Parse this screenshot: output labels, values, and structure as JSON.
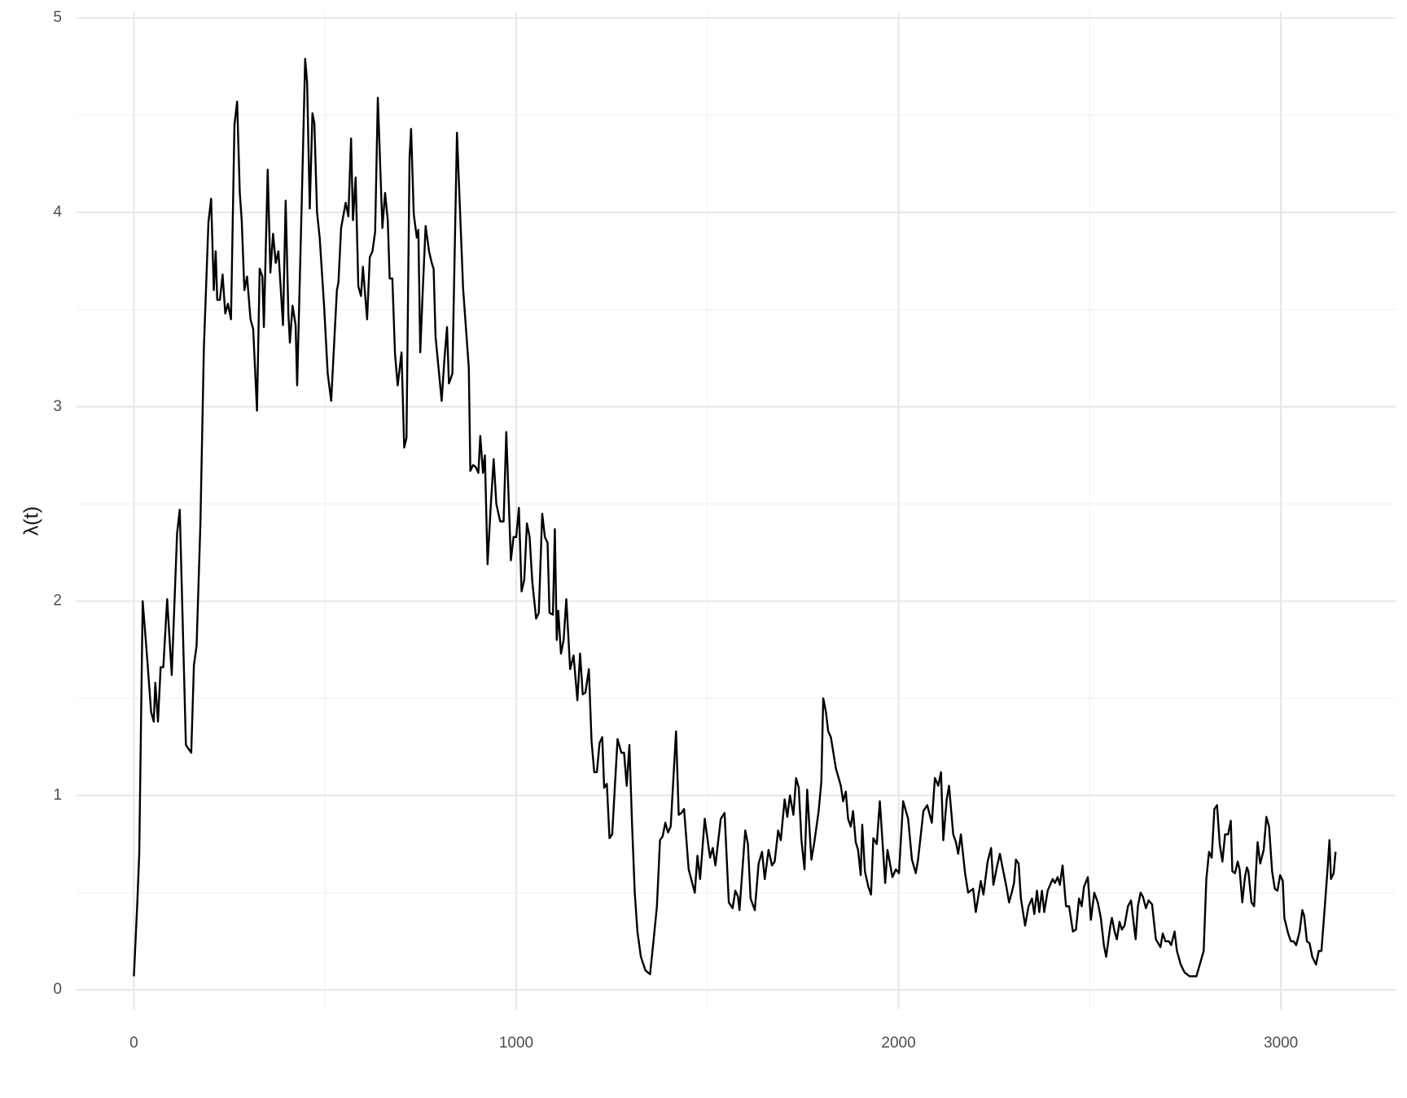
{
  "chart_data": {
    "type": "line",
    "y_label": "λ(t)",
    "color": "#000000",
    "grid": true,
    "xlim": [
      -150,
      3300
    ],
    "ylim": [
      -0.1,
      5.03
    ],
    "xticks": [
      0,
      1000,
      2000,
      3000
    ],
    "yticks": [
      0,
      1,
      2,
      3,
      4,
      5
    ],
    "x_minor_grid": [
      500,
      1500,
      2500
    ],
    "y_minor_grid": [
      0.5,
      1.5,
      2.5,
      3.5,
      4.5
    ],
    "x": [
      0,
      9,
      14,
      23,
      35,
      45,
      52,
      56,
      63,
      70,
      77,
      87,
      99,
      113,
      120,
      136,
      150,
      157,
      164,
      174,
      183,
      195,
      202,
      209,
      214,
      218,
      225,
      232,
      239,
      246,
      254,
      263,
      270,
      277,
      282,
      289,
      296,
      305,
      312,
      322,
      329,
      336,
      340,
      350,
      357,
      364,
      371,
      378,
      390,
      397,
      404,
      408,
      415,
      423,
      427,
      439,
      448,
      453,
      460,
      467,
      472,
      479,
      486,
      498,
      507,
      516,
      531,
      535,
      542,
      554,
      561,
      568,
      573,
      580,
      587,
      594,
      599,
      610,
      617,
      624,
      631,
      638,
      650,
      657,
      664,
      669,
      676,
      683,
      690,
      700,
      707,
      713,
      721,
      725,
      732,
      740,
      744,
      749,
      756,
      763,
      772,
      779,
      784,
      789,
      805,
      812,
      819,
      824,
      833,
      845,
      861,
      869,
      876,
      880,
      887,
      894,
      901,
      906,
      913,
      918,
      925,
      934,
      941,
      948,
      958,
      967,
      974,
      986,
      993,
      1000,
      1007,
      1014,
      1021,
      1028,
      1035,
      1042,
      1052,
      1059,
      1068,
      1075,
      1082,
      1087,
      1096,
      1101,
      1106,
      1110,
      1117,
      1124,
      1131,
      1141,
      1150,
      1160,
      1167,
      1174,
      1181,
      1190,
      1197,
      1204,
      1211,
      1218,
      1225,
      1230,
      1237,
      1244,
      1251,
      1265,
      1275,
      1282,
      1289,
      1296,
      1303,
      1310,
      1317,
      1326,
      1338,
      1350,
      1359,
      1368,
      1376,
      1383,
      1390,
      1397,
      1404,
      1418,
      1425,
      1432,
      1439,
      1451,
      1467,
      1474,
      1481,
      1493,
      1507,
      1514,
      1521,
      1535,
      1545,
      1556,
      1566,
      1573,
      1580,
      1584,
      1599,
      1606,
      1613,
      1624,
      1634,
      1643,
      1650,
      1660,
      1669,
      1676,
      1685,
      1692,
      1702,
      1709,
      1716,
      1725,
      1732,
      1739,
      1746,
      1754,
      1761,
      1772,
      1779,
      1791,
      1798,
      1803,
      1810,
      1816,
      1823,
      1836,
      1849,
      1855,
      1862,
      1868,
      1875,
      1881,
      1888,
      1894,
      1901,
      1905,
      1912,
      1921,
      1928,
      1934,
      1943,
      1951,
      1965,
      1971,
      1984,
      1993,
      2001,
      2012,
      2025,
      2035,
      2045,
      2051,
      2065,
      2075,
      2087,
      2095,
      2104,
      2111,
      2117,
      2126,
      2132,
      2143,
      2150,
      2156,
      2163,
      2174,
      2182,
      2195,
      2202,
      2215,
      2222,
      2233,
      2242,
      2248,
      2257,
      2265,
      2276,
      2283,
      2289,
      2296,
      2302,
      2307,
      2314,
      2320,
      2331,
      2340,
      2349,
      2355,
      2362,
      2368,
      2375,
      2381,
      2390,
      2403,
      2409,
      2416,
      2422,
      2429,
      2438,
      2446,
      2456,
      2464,
      2472,
      2479,
      2485,
      2495,
      2503,
      2512,
      2521,
      2529,
      2537,
      2543,
      2554,
      2558,
      2565,
      2571,
      2578,
      2584,
      2591,
      2600,
      2608,
      2620,
      2626,
      2633,
      2639,
      2647,
      2654,
      2663,
      2673,
      2685,
      2691,
      2698,
      2707,
      2713,
      2722,
      2728,
      2738,
      2748,
      2761,
      2779,
      2798,
      2805,
      2812,
      2819,
      2826,
      2833,
      2840,
      2847,
      2854,
      2862,
      2869,
      2873,
      2880,
      2887,
      2892,
      2899,
      2906,
      2911,
      2915,
      2923,
      2930,
      2939,
      2946,
      2955,
      2962,
      2969,
      2977,
      2984,
      2991,
      2998,
      3005,
      3009,
      3019,
      3026,
      3033,
      3040,
      3049,
      3056,
      3061,
      3068,
      3075,
      3082,
      3092,
      3099,
      3106,
      3113,
      3122,
      3127,
      3131,
      3138,
      3143
    ],
    "values": [
      0.07,
      0.45,
      0.7,
      2.0,
      1.7,
      1.43,
      1.38,
      1.58,
      1.38,
      1.66,
      1.66,
      2.01,
      1.62,
      2.35,
      2.47,
      1.26,
      1.22,
      1.67,
      1.77,
      2.4,
      3.3,
      3.95,
      4.07,
      3.6,
      3.8,
      3.55,
      3.55,
      3.68,
      3.48,
      3.53,
      3.45,
      4.45,
      4.57,
      4.1,
      3.96,
      3.6,
      3.67,
      3.45,
      3.4,
      2.98,
      3.71,
      3.67,
      3.41,
      4.22,
      3.69,
      3.89,
      3.74,
      3.8,
      3.42,
      4.06,
      3.48,
      3.33,
      3.52,
      3.42,
      3.11,
      4.05,
      4.79,
      4.67,
      4.02,
      4.51,
      4.46,
      4.0,
      3.87,
      3.5,
      3.17,
      3.03,
      3.6,
      3.64,
      3.92,
      4.05,
      3.98,
      4.38,
      3.96,
      4.18,
      3.62,
      3.57,
      3.72,
      3.45,
      3.77,
      3.8,
      3.9,
      4.59,
      3.92,
      4.1,
      3.96,
      3.66,
      3.66,
      3.27,
      3.11,
      3.28,
      2.79,
      2.84,
      4.28,
      4.43,
      3.99,
      3.87,
      3.91,
      3.28,
      3.62,
      3.93,
      3.8,
      3.74,
      3.71,
      3.36,
      3.03,
      3.24,
      3.41,
      3.12,
      3.17,
      4.41,
      3.61,
      3.39,
      3.2,
      2.67,
      2.7,
      2.69,
      2.66,
      2.85,
      2.66,
      2.75,
      2.19,
      2.51,
      2.73,
      2.5,
      2.41,
      2.41,
      2.87,
      2.21,
      2.33,
      2.33,
      2.48,
      2.05,
      2.11,
      2.4,
      2.33,
      2.1,
      1.91,
      1.94,
      2.45,
      2.33,
      2.3,
      1.94,
      1.93,
      2.37,
      1.8,
      1.95,
      1.73,
      1.8,
      2.01,
      1.65,
      1.72,
      1.49,
      1.73,
      1.52,
      1.53,
      1.65,
      1.28,
      1.12,
      1.12,
      1.27,
      1.3,
      1.04,
      1.06,
      0.78,
      0.8,
      1.29,
      1.22,
      1.22,
      1.05,
      1.26,
      0.85,
      0.5,
      0.3,
      0.17,
      0.1,
      0.08,
      0.25,
      0.43,
      0.77,
      0.79,
      0.86,
      0.81,
      0.84,
      1.33,
      0.9,
      0.91,
      0.93,
      0.62,
      0.5,
      0.69,
      0.57,
      0.88,
      0.68,
      0.73,
      0.64,
      0.88,
      0.91,
      0.45,
      0.42,
      0.51,
      0.48,
      0.41,
      0.82,
      0.75,
      0.47,
      0.41,
      0.65,
      0.71,
      0.57,
      0.72,
      0.64,
      0.66,
      0.82,
      0.77,
      0.98,
      0.89,
      1.0,
      0.9,
      1.09,
      1.04,
      0.77,
      0.62,
      1.03,
      0.67,
      0.75,
      0.92,
      1.07,
      1.5,
      1.43,
      1.33,
      1.3,
      1.14,
      1.05,
      0.97,
      1.02,
      0.88,
      0.84,
      0.92,
      0.76,
      0.72,
      0.59,
      0.85,
      0.61,
      0.53,
      0.49,
      0.78,
      0.75,
      0.97,
      0.55,
      0.72,
      0.58,
      0.62,
      0.6,
      0.97,
      0.88,
      0.67,
      0.6,
      0.67,
      0.92,
      0.95,
      0.86,
      1.09,
      1.05,
      1.12,
      0.77,
      0.98,
      1.05,
      0.8,
      0.76,
      0.7,
      0.8,
      0.6,
      0.5,
      0.52,
      0.4,
      0.56,
      0.49,
      0.66,
      0.73,
      0.54,
      0.63,
      0.7,
      0.59,
      0.52,
      0.45,
      0.5,
      0.55,
      0.67,
      0.65,
      0.47,
      0.33,
      0.43,
      0.47,
      0.39,
      0.51,
      0.4,
      0.51,
      0.4,
      0.51,
      0.57,
      0.55,
      0.58,
      0.54,
      0.64,
      0.43,
      0.43,
      0.3,
      0.31,
      0.47,
      0.43,
      0.53,
      0.58,
      0.36,
      0.5,
      0.45,
      0.37,
      0.23,
      0.17,
      0.33,
      0.37,
      0.3,
      0.26,
      0.35,
      0.31,
      0.33,
      0.43,
      0.46,
      0.26,
      0.43,
      0.5,
      0.48,
      0.42,
      0.46,
      0.44,
      0.26,
      0.22,
      0.29,
      0.25,
      0.25,
      0.23,
      0.3,
      0.2,
      0.13,
      0.09,
      0.07,
      0.07,
      0.2,
      0.57,
      0.71,
      0.68,
      0.93,
      0.95,
      0.75,
      0.66,
      0.8,
      0.8,
      0.87,
      0.61,
      0.6,
      0.66,
      0.62,
      0.45,
      0.58,
      0.63,
      0.61,
      0.45,
      0.43,
      0.76,
      0.65,
      0.72,
      0.89,
      0.84,
      0.61,
      0.52,
      0.51,
      0.59,
      0.56,
      0.37,
      0.29,
      0.25,
      0.25,
      0.23,
      0.3,
      0.41,
      0.38,
      0.25,
      0.24,
      0.17,
      0.13,
      0.2,
      0.2,
      0.38,
      0.62,
      0.77,
      0.57,
      0.6,
      0.71
    ]
  }
}
